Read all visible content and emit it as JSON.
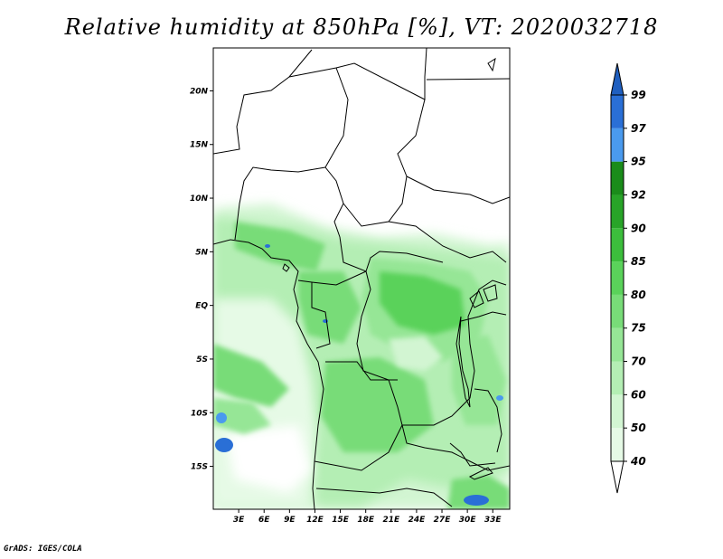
{
  "title": "Relative humidity at 850hPa [%], VT: 2020032718",
  "credit": "GrADS: IGES/COLA",
  "map": {
    "lat_labels": [
      "20N",
      "15N",
      "10N",
      "5N",
      "EQ",
      "5S",
      "10S",
      "15S"
    ],
    "lat_values": [
      20,
      15,
      10,
      5,
      0,
      -5,
      -10,
      -15
    ],
    "lon_labels": [
      "3E",
      "6E",
      "9E",
      "12E",
      "15E",
      "18E",
      "21E",
      "24E",
      "27E",
      "30E",
      "33E"
    ],
    "lon_values": [
      3,
      6,
      9,
      12,
      15,
      18,
      21,
      24,
      27,
      30,
      33
    ],
    "lat_range": [
      -19,
      24
    ],
    "lon_range": [
      0,
      35
    ]
  },
  "colorbar": {
    "labels": [
      "40",
      "50",
      "60",
      "70",
      "75",
      "80",
      "85",
      "90",
      "92",
      "95",
      "97",
      "99"
    ],
    "colors": [
      "#ffffff",
      "#e6fae6",
      "#d2f5d2",
      "#b4eeb4",
      "#96e696",
      "#78dc78",
      "#5ad25a",
      "#3cbe3c",
      "#28a428",
      "#1a8c1a",
      "#4a9aee",
      "#2a6fd6",
      "#1f5fc0"
    ]
  }
}
